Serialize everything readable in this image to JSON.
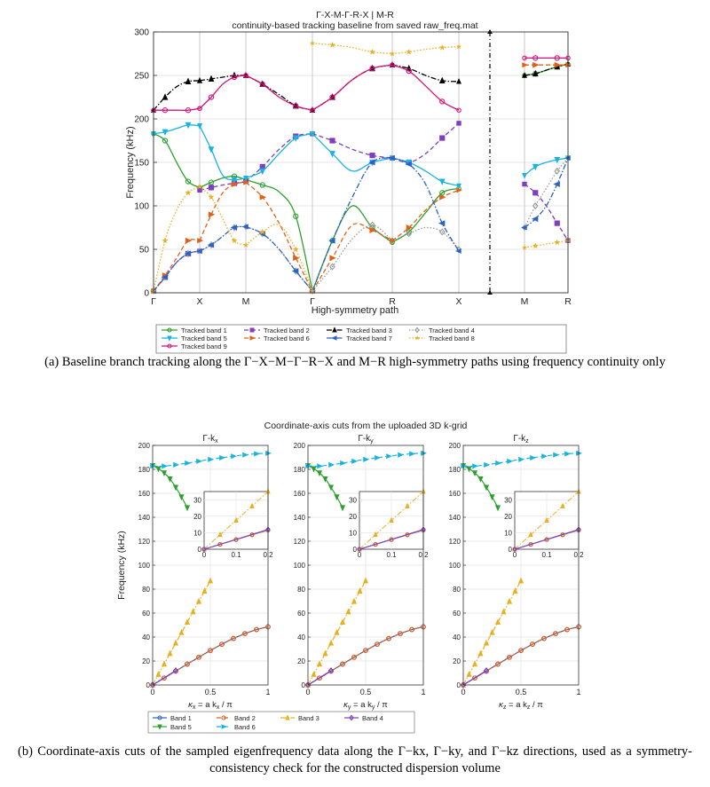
{
  "figure_a": {
    "title_line1": "Γ-X-M-Γ-R-X | M-R",
    "title_line2": "continuity-based  tracking  baseline  from  saved  raw_freq.mat",
    "xlabel": "High-symmetry path",
    "ylabel": "Frequency (kHz)",
    "caption": "(a) Baseline branch tracking along the Γ−X−M−Γ−R−X and M−R high-symmetry paths using frequency continuity only"
  },
  "figure_b": {
    "title": "Coordinate-axis cuts from the uploaded 3D k-grid",
    "ylabel": "Frequency (kHz)",
    "caption": "(b) Coordinate-axis cuts of the sampled eigenfrequency data along the Γ−kx, Γ−ky, and Γ−kz directions, used as a symmetry-consistency check for the constructed dispersion volume"
  },
  "chart_data": [
    {
      "type": "line",
      "title": "Γ-X-M-Γ-R-X | M-R",
      "subtitle": "continuity-based  tracking  baseline  from  saved  raw_freq.mat",
      "xlabel": "High-symmetry path",
      "ylabel": "Frequency (kHz)",
      "ylim": [
        0,
        300
      ],
      "grid": true,
      "legend_position": "bottom",
      "x_ticks": [
        "Γ",
        "X",
        "M",
        "Γ",
        "R",
        "X",
        "M",
        "R"
      ],
      "segments": [
        "Γ-X",
        "X-M",
        "M-Γ",
        "Γ-R",
        "R-X",
        "M-R"
      ],
      "series": [
        {
          "name": "Tracked band 1",
          "color": "#2ca02c",
          "style": "solid",
          "marker": "circle",
          "values": [
            [
              183,
              175,
              150,
              128,
              121
            ],
            [
              121,
              127,
              132,
              134,
              130
            ],
            [
              130,
              124,
              116,
              88,
              2
            ],
            [
              2,
              60,
              100,
              75,
              58
            ],
            [
              58,
              70,
              92,
              115,
              120
            ],
            [
              250,
              252,
              256,
              260,
              263
            ]
          ]
        },
        {
          "name": "Tracked band 2",
          "color": "#7f3fbf",
          "style": "dashed",
          "marker": "square",
          "values": [
            [
              2,
              18,
              35,
              45,
              48
            ],
            [
              118,
              121,
              124,
              126,
              128
            ],
            [
              128,
              145,
              165,
              180,
              183
            ],
            [
              183,
              175,
              165,
              158,
              155
            ],
            [
              155,
              150,
              160,
              178,
              195
            ],
            [
              125,
              115,
              100,
              80,
              60
            ]
          ]
        },
        {
          "name": "Tracked band 3",
          "color": "#000000",
          "style": "dashdot",
          "marker": "triangle",
          "values": [
            [
              210,
              225,
              237,
              243,
              244
            ],
            [
              244,
              246,
              248,
              250,
              250
            ],
            [
              250,
              240,
              228,
              215,
              210
            ],
            [
              210,
              225,
              245,
              258,
              262
            ],
            [
              262,
              258,
              250,
              244,
              243
            ],
            [
              250,
              252,
              256,
              260,
              263
            ]
          ]
        },
        {
          "name": "Tracked band 4",
          "color": "#999999",
          "style": "dotted",
          "marker": "diamond",
          "values": [
            [
              2,
              18,
              35,
              45,
              48
            ],
            [
              48,
              55,
              65,
              75,
              76
            ],
            [
              76,
              68,
              50,
              25,
              2
            ],
            [
              2,
              30,
              62,
              78,
              60
            ],
            [
              60,
              68,
              75,
              70,
              50
            ],
            [
              75,
              100,
              120,
              140,
              155
            ]
          ]
        },
        {
          "name": "Tracked band 5",
          "color": "#18b4e0",
          "style": "solid",
          "marker": "triangle-down",
          "values": [
            [
              183,
              185,
              189,
              193,
              192
            ],
            [
              192,
              165,
              135,
              130,
              132
            ],
            [
              132,
              140,
              160,
              178,
              183
            ],
            [
              183,
              160,
              140,
              150,
              155
            ],
            [
              155,
              150,
              140,
              128,
              123
            ],
            [
              135,
              145,
              150,
              153,
              155
            ]
          ]
        },
        {
          "name": "Tracked band 6",
          "color": "#e0601a",
          "style": "dashed",
          "marker": "triangle-right",
          "values": [
            [
              2,
              20,
              40,
              60,
              60
            ],
            [
              60,
              90,
              115,
              125,
              127
            ],
            [
              127,
              110,
              80,
              40,
              2
            ],
            [
              2,
              40,
              78,
              72,
              60
            ],
            [
              60,
              75,
              95,
              110,
              118
            ],
            [
              262,
              262,
              262,
              262,
              262
            ]
          ]
        },
        {
          "name": "Tracked band 7",
          "color": "#2a62c8",
          "style": "dashdot",
          "marker": "triangle-left",
          "values": [
            [
              2,
              18,
              35,
              45,
              48
            ],
            [
              48,
              55,
              65,
              75,
              76
            ],
            [
              76,
              68,
              50,
              25,
              2
            ],
            [
              2,
              60,
              110,
              150,
              155
            ],
            [
              155,
              148,
              125,
              80,
              48
            ],
            [
              75,
              85,
              100,
              125,
              155
            ]
          ]
        },
        {
          "name": "Tracked band 8",
          "color": "#e8b020",
          "style": "dotted",
          "marker": "star",
          "values": [
            [
              2,
              60,
              95,
              115,
              122
            ],
            [
              122,
              110,
              85,
              60,
              55
            ],
            [
              55,
              70,
              78,
              50,
              2
            ],
            [
              287,
              285,
              282,
              277,
              275
            ],
            [
              275,
              277,
              280,
              282,
              283
            ],
            [
              52,
              54,
              56,
              58,
              60
            ]
          ]
        },
        {
          "name": "Tracked band 9",
          "color": "#d4127a",
          "style": "solid",
          "marker": "circle",
          "values": [
            [
              210,
              210,
              210,
              210,
              212
            ],
            [
              212,
              225,
              240,
              248,
              250
            ],
            [
              250,
              240,
              225,
              215,
              210
            ],
            [
              210,
              225,
              245,
              258,
              262
            ],
            [
              262,
              255,
              238,
              220,
              210
            ],
            [
              270,
              270,
              270,
              270,
              270
            ]
          ]
        }
      ]
    },
    {
      "type": "line",
      "title": "Γ-kx",
      "xlabel": "κx = a kx / π",
      "ylabel": "Frequency (kHz)",
      "xlim": [
        0,
        1
      ],
      "ylim": [
        0,
        200
      ],
      "inset": {
        "xlim": [
          0,
          0.2
        ],
        "ylim": [
          0,
          35
        ],
        "yticks": [
          0,
          10,
          20,
          30
        ],
        "xticks": [
          0,
          0.1,
          0.2
        ]
      },
      "series": [
        {
          "name": "Band 1",
          "color": "#2a62c8",
          "style": "solid",
          "marker": "circle",
          "x": [
            0,
            0.05,
            0.1,
            0.15,
            0.2,
            0.25,
            0.3,
            0.35,
            0.4,
            0.45,
            0.5,
            0.55,
            0.6,
            0.65,
            0.7,
            0.75,
            0.8,
            0.85,
            0.9,
            0.95,
            1.0
          ],
          "values": [
            0,
            2.9,
            5.8,
            8.7,
            11.6,
            14.5,
            17.4,
            20.3,
            23.1,
            26.0,
            28.8,
            31.4,
            34.0,
            36.5,
            38.8,
            40.9,
            42.9,
            44.6,
            46.2,
            47.5,
            48.5
          ]
        },
        {
          "name": "Band 2",
          "color": "#e0601a",
          "style": "dashed",
          "marker": "circle",
          "x": [
            0,
            0.05,
            0.1,
            0.15,
            0.2,
            0.25,
            0.3,
            0.35,
            0.4,
            0.45,
            0.5,
            0.55,
            0.6,
            0.65,
            0.7,
            0.75,
            0.8,
            0.85,
            0.9,
            0.95,
            1.0
          ],
          "values": [
            0,
            2.9,
            5.8,
            8.7,
            11.6,
            14.5,
            17.4,
            20.3,
            23.1,
            26.0,
            28.8,
            31.4,
            34.0,
            36.5,
            38.8,
            40.9,
            42.9,
            44.6,
            46.2,
            47.5,
            48.5
          ]
        },
        {
          "name": "Band 3",
          "color": "#e8b020",
          "style": "dashdot",
          "marker": "triangle",
          "x": [
            0,
            0.05,
            0.1,
            0.15,
            0.2,
            0.25,
            0.3,
            0.35,
            0.4,
            0.45,
            0.5
          ],
          "values": [
            0,
            8.8,
            17.5,
            26.2,
            35,
            43.7,
            52.4,
            61.1,
            69.8,
            78.4,
            87
          ]
        },
        {
          "name": "Band 4",
          "color": "#7f3fbf",
          "style": "solid",
          "marker": "diamond",
          "x": [
            0,
            0.2
          ],
          "values": [
            0,
            12
          ]
        },
        {
          "name": "Band 5",
          "color": "#2ca02c",
          "style": "solid",
          "marker": "triangle-down",
          "x": [
            0,
            0.05,
            0.1,
            0.15,
            0.2,
            0.25,
            0.3
          ],
          "values": [
            183,
            180.5,
            177,
            172,
            165,
            157,
            148
          ]
        },
        {
          "name": "Band 6",
          "color": "#18b4e0",
          "style": "dashed",
          "marker": "triangle-right",
          "x": [
            0,
            0.05,
            0.1,
            0.15,
            0.2,
            0.25,
            0.3,
            0.35,
            0.4,
            0.45,
            0.5,
            0.55,
            0.6,
            0.65,
            0.7,
            0.75,
            0.8,
            0.85,
            0.9,
            0.95,
            1.0
          ],
          "values": [
            183,
            182.5,
            182.7,
            183.2,
            183.8,
            184.5,
            185.2,
            186,
            186.8,
            187.6,
            188.3,
            189,
            189.7,
            190.4,
            191,
            191.6,
            192.1,
            192.6,
            193,
            193.3,
            193.5
          ]
        }
      ]
    },
    {
      "type": "line",
      "title": "Γ-ky",
      "xlabel": "κy = a ky / π",
      "ylabel": "Frequency (kHz)",
      "xlim": [
        0,
        1
      ],
      "ylim": [
        0,
        200
      ],
      "same_series_as": "Γ-kx"
    },
    {
      "type": "line",
      "title": "Γ-kz",
      "xlabel": "κz = a kz / π",
      "ylabel": "Frequency (kHz)",
      "xlim": [
        0,
        1
      ],
      "ylim": [
        0,
        200
      ],
      "same_series_as": "Γ-kx"
    }
  ]
}
